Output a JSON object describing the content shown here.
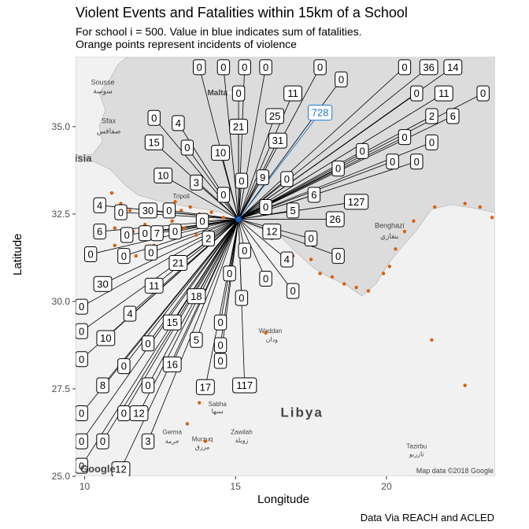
{
  "chart_data": {
    "type": "scatter",
    "title": "Violent Events and Fatalities within 15km of a School",
    "subtitle_lines": [
      "For school i = 500. Value in blue indicates sum of fatalities.",
      "Orange points represent incidents of violence"
    ],
    "xlabel": "Longitude",
    "ylabel": "Latitude",
    "caption": "Data Via REACH and ACLED",
    "xlim": [
      9.7,
      23.6
    ],
    "ylim": [
      25.0,
      37.0
    ],
    "xticks": [
      10,
      15,
      20
    ],
    "yticks": [
      25.0,
      27.5,
      30.0,
      32.5,
      35.0
    ],
    "xtick_labels": [
      "10",
      "15",
      "20"
    ],
    "ytick_labels": [
      "25.0",
      "27.5",
      "30.0",
      "32.5",
      "35.0"
    ],
    "school": {
      "lon": 15.1,
      "lat": 32.35,
      "color": "#1f5fbf"
    },
    "sum_label": {
      "value": "728",
      "lon": 17.8,
      "lat": 35.4,
      "color": "#1f78c8"
    },
    "event_color": "#d95f0e",
    "map_credit": "Map data ©2018 Google",
    "google_logo": "Google",
    "map_places": [
      {
        "name": "Malta",
        "lon": 14.4,
        "lat": 35.9,
        "bold": true,
        "size": 10
      },
      {
        "name": "Sousse",
        "lon": 10.6,
        "lat": 36.2,
        "bold": false,
        "size": 9
      },
      {
        "name": "سوسة",
        "lon": 10.6,
        "lat": 35.95,
        "bold": false,
        "size": 9
      },
      {
        "name": "Sfax",
        "lon": 10.8,
        "lat": 35.1,
        "bold": false,
        "size": 9
      },
      {
        "name": "صفاقس",
        "lon": 10.8,
        "lat": 34.8,
        "bold": false,
        "size": 9
      },
      {
        "name": "isia",
        "lon": 9.95,
        "lat": 34.0,
        "bold": true,
        "size": 13
      },
      {
        "name": "Benghazi",
        "lon": 20.1,
        "lat": 32.1,
        "bold": false,
        "size": 9
      },
      {
        "name": "بنغازي",
        "lon": 20.1,
        "lat": 31.8,
        "bold": false,
        "size": 9
      },
      {
        "name": "Waddan",
        "lon": 16.15,
        "lat": 29.1,
        "bold": false,
        "size": 8
      },
      {
        "name": "ودان",
        "lon": 16.2,
        "lat": 28.85,
        "bold": false,
        "size": 8
      },
      {
        "name": "Sabha",
        "lon": 14.4,
        "lat": 27.0,
        "bold": false,
        "size": 8
      },
      {
        "name": "سبها",
        "lon": 14.4,
        "lat": 26.8,
        "bold": false,
        "size": 8
      },
      {
        "name": "Libya",
        "lon": 17.2,
        "lat": 26.7,
        "bold": true,
        "size": 17
      },
      {
        "name": "Germa",
        "lon": 12.9,
        "lat": 26.2,
        "bold": false,
        "size": 8
      },
      {
        "name": "جرمة",
        "lon": 12.9,
        "lat": 25.95,
        "bold": false,
        "size": 8
      },
      {
        "name": "Murzuq",
        "lon": 13.9,
        "lat": 26.0,
        "bold": false,
        "size": 8
      },
      {
        "name": "مرزق",
        "lon": 13.9,
        "lat": 25.78,
        "bold": false,
        "size": 8
      },
      {
        "name": "Zawilah",
        "lon": 15.2,
        "lat": 26.2,
        "bold": false,
        "size": 8
      },
      {
        "name": "زويلة",
        "lon": 15.2,
        "lat": 25.97,
        "bold": false,
        "size": 8
      },
      {
        "name": "Tazirbu",
        "lon": 21.0,
        "lat": 25.8,
        "bold": false,
        "size": 8
      },
      {
        "name": "تازربو",
        "lon": 21.0,
        "lat": 25.57,
        "bold": false,
        "size": 8
      },
      {
        "name": "Tripoli",
        "lon": 13.2,
        "lat": 32.95,
        "bold": false,
        "size": 8
      }
    ],
    "labels": [
      {
        "v": "0",
        "lon": 13.8,
        "lat": 36.7
      },
      {
        "v": "0",
        "lon": 14.6,
        "lat": 36.7
      },
      {
        "v": "0",
        "lon": 15.3,
        "lat": 36.7
      },
      {
        "v": "0",
        "lon": 16.0,
        "lat": 36.7
      },
      {
        "v": "0",
        "lon": 17.8,
        "lat": 36.7
      },
      {
        "v": "0",
        "lon": 18.5,
        "lat": 36.35
      },
      {
        "v": "0",
        "lon": 20.6,
        "lat": 36.7
      },
      {
        "v": "36",
        "lon": 21.4,
        "lat": 36.7
      },
      {
        "v": "14",
        "lon": 22.2,
        "lat": 36.7
      },
      {
        "v": "0",
        "lon": 15.1,
        "lat": 35.95
      },
      {
        "v": "11",
        "lon": 16.9,
        "lat": 35.95
      },
      {
        "v": "0",
        "lon": 21.0,
        "lat": 35.95
      },
      {
        "v": "11",
        "lon": 21.9,
        "lat": 35.95
      },
      {
        "v": "0",
        "lon": 23.2,
        "lat": 35.95
      },
      {
        "v": "0",
        "lon": 12.3,
        "lat": 35.25
      },
      {
        "v": "4",
        "lon": 13.1,
        "lat": 35.1
      },
      {
        "v": "21",
        "lon": 15.1,
        "lat": 35.0
      },
      {
        "v": "25",
        "lon": 16.3,
        "lat": 35.3
      },
      {
        "v": "2",
        "lon": 21.5,
        "lat": 35.3
      },
      {
        "v": "6",
        "lon": 22.2,
        "lat": 35.3
      },
      {
        "v": "15",
        "lon": 12.3,
        "lat": 34.55
      },
      {
        "v": "0",
        "lon": 13.4,
        "lat": 34.4
      },
      {
        "v": "10",
        "lon": 14.5,
        "lat": 34.25
      },
      {
        "v": "31",
        "lon": 16.4,
        "lat": 34.6
      },
      {
        "v": "0",
        "lon": 20.6,
        "lat": 34.7
      },
      {
        "v": "0",
        "lon": 21.5,
        "lat": 34.55
      },
      {
        "v": "0",
        "lon": 19.2,
        "lat": 34.3
      },
      {
        "v": "0",
        "lon": 20.2,
        "lat": 34.0
      },
      {
        "v": "0",
        "lon": 21.0,
        "lat": 34.0
      },
      {
        "v": "10",
        "lon": 12.6,
        "lat": 33.6
      },
      {
        "v": "3",
        "lon": 13.7,
        "lat": 33.4
      },
      {
        "v": "0",
        "lon": 15.2,
        "lat": 33.45
      },
      {
        "v": "9",
        "lon": 15.9,
        "lat": 33.55
      },
      {
        "v": "0",
        "lon": 16.7,
        "lat": 33.5
      },
      {
        "v": "0",
        "lon": 18.4,
        "lat": 33.8
      },
      {
        "v": "0",
        "lon": 14.6,
        "lat": 33.05
      },
      {
        "v": "6",
        "lon": 17.6,
        "lat": 33.05
      },
      {
        "v": "127",
        "lon": 19.0,
        "lat": 32.85
      },
      {
        "v": "4",
        "lon": 10.5,
        "lat": 32.75
      },
      {
        "v": "0",
        "lon": 11.2,
        "lat": 32.55
      },
      {
        "v": "30",
        "lon": 12.1,
        "lat": 32.6
      },
      {
        "v": "0",
        "lon": 12.8,
        "lat": 32.6
      },
      {
        "v": "0",
        "lon": 16.0,
        "lat": 32.7
      },
      {
        "v": "5",
        "lon": 16.9,
        "lat": 32.6
      },
      {
        "v": "0",
        "lon": 13.9,
        "lat": 32.3
      },
      {
        "v": "26",
        "lon": 18.3,
        "lat": 32.35
      },
      {
        "v": "6",
        "lon": 10.5,
        "lat": 32.0
      },
      {
        "v": "0",
        "lon": 11.4,
        "lat": 31.9
      },
      {
        "v": "0",
        "lon": 12.0,
        "lat": 31.95
      },
      {
        "v": "7",
        "lon": 12.4,
        "lat": 31.95
      },
      {
        "v": "0",
        "lon": 13.0,
        "lat": 32.0
      },
      {
        "v": "12",
        "lon": 16.2,
        "lat": 32.0
      },
      {
        "v": "0",
        "lon": 17.5,
        "lat": 31.8
      },
      {
        "v": "2",
        "lon": 14.1,
        "lat": 31.8
      },
      {
        "v": "0",
        "lon": 10.2,
        "lat": 31.35
      },
      {
        "v": "0",
        "lon": 11.3,
        "lat": 31.3
      },
      {
        "v": "0",
        "lon": 12.2,
        "lat": 31.4
      },
      {
        "v": "0",
        "lon": 15.3,
        "lat": 31.45
      },
      {
        "v": "4",
        "lon": 16.7,
        "lat": 31.2
      },
      {
        "v": "0",
        "lon": 18.4,
        "lat": 31.3
      },
      {
        "v": "21",
        "lon": 13.1,
        "lat": 31.1
      },
      {
        "v": "0",
        "lon": 14.8,
        "lat": 30.8
      },
      {
        "v": "0",
        "lon": 16.0,
        "lat": 30.65
      },
      {
        "v": "30",
        "lon": 10.6,
        "lat": 30.5
      },
      {
        "v": "11",
        "lon": 12.3,
        "lat": 30.45
      },
      {
        "v": "0",
        "lon": 16.9,
        "lat": 30.3
      },
      {
        "v": "18",
        "lon": 13.7,
        "lat": 30.15
      },
      {
        "v": "0",
        "lon": 15.2,
        "lat": 30.1
      },
      {
        "v": "0",
        "lon": 9.9,
        "lat": 29.85
      },
      {
        "v": "4",
        "lon": 11.5,
        "lat": 29.65
      },
      {
        "v": "15",
        "lon": 12.9,
        "lat": 29.4
      },
      {
        "v": "0",
        "lon": 14.5,
        "lat": 29.4
      },
      {
        "v": "0",
        "lon": 9.9,
        "lat": 29.15
      },
      {
        "v": "10",
        "lon": 10.7,
        "lat": 28.95
      },
      {
        "v": "0",
        "lon": 12.1,
        "lat": 28.8
      },
      {
        "v": "5",
        "lon": 13.7,
        "lat": 28.9
      },
      {
        "v": "0",
        "lon": 14.5,
        "lat": 28.75
      },
      {
        "v": "0",
        "lon": 9.9,
        "lat": 28.35
      },
      {
        "v": "0",
        "lon": 11.3,
        "lat": 28.15
      },
      {
        "v": "16",
        "lon": 12.9,
        "lat": 28.2
      },
      {
        "v": "0",
        "lon": 14.5,
        "lat": 28.3
      },
      {
        "v": "8",
        "lon": 10.6,
        "lat": 27.6
      },
      {
        "v": "0",
        "lon": 12.1,
        "lat": 27.6
      },
      {
        "v": "17",
        "lon": 14.0,
        "lat": 27.55
      },
      {
        "v": "117",
        "lon": 15.3,
        "lat": 27.6
      },
      {
        "v": "0",
        "lon": 9.9,
        "lat": 26.8
      },
      {
        "v": "0",
        "lon": 11.3,
        "lat": 26.8
      },
      {
        "v": "12",
        "lon": 11.8,
        "lat": 26.8
      },
      {
        "v": "0",
        "lon": 9.9,
        "lat": 26.0
      },
      {
        "v": "0",
        "lon": 10.6,
        "lat": 26.0
      },
      {
        "v": "3",
        "lon": 12.1,
        "lat": 26.0
      },
      {
        "v": "0",
        "lon": 9.9,
        "lat": 25.3
      },
      {
        "v": "12",
        "lon": 11.2,
        "lat": 25.2
      }
    ],
    "events": [
      [
        11.2,
        32.8
      ],
      [
        11.5,
        32.6
      ],
      [
        11.9,
        32.7
      ],
      [
        12.3,
        32.55
      ],
      [
        12.7,
        32.7
      ],
      [
        13.0,
        32.85
      ],
      [
        13.2,
        32.6
      ],
      [
        13.5,
        32.7
      ],
      [
        13.8,
        32.5
      ],
      [
        14.2,
        32.55
      ],
      [
        14.6,
        32.4
      ],
      [
        11.0,
        32.1
      ],
      [
        11.3,
        31.95
      ],
      [
        11.6,
        32.0
      ],
      [
        12.0,
        32.2
      ],
      [
        12.4,
        32.0
      ],
      [
        12.9,
        32.3
      ],
      [
        13.3,
        32.1
      ],
      [
        11.0,
        31.6
      ],
      [
        11.7,
        31.3
      ],
      [
        12.3,
        31.6
      ],
      [
        13.7,
        31.9
      ],
      [
        16.2,
        31.8
      ],
      [
        16.9,
        31.3
      ],
      [
        17.5,
        31.2
      ],
      [
        17.8,
        30.8
      ],
      [
        18.2,
        30.7
      ],
      [
        18.6,
        30.5
      ],
      [
        19.0,
        30.4
      ],
      [
        19.4,
        30.3
      ],
      [
        19.9,
        30.8
      ],
      [
        20.1,
        31.0
      ],
      [
        20.3,
        31.5
      ],
      [
        20.6,
        32.0
      ],
      [
        20.9,
        32.3
      ],
      [
        21.6,
        32.7
      ],
      [
        22.6,
        32.8
      ],
      [
        23.1,
        32.7
      ],
      [
        23.5,
        32.4
      ],
      [
        21.5,
        28.9
      ],
      [
        22.6,
        27.6
      ],
      [
        16.0,
        29.1
      ],
      [
        13.8,
        27.1
      ],
      [
        14.0,
        26.0
      ],
      [
        13.4,
        26.5
      ],
      [
        10.9,
        33.1
      ]
    ]
  }
}
